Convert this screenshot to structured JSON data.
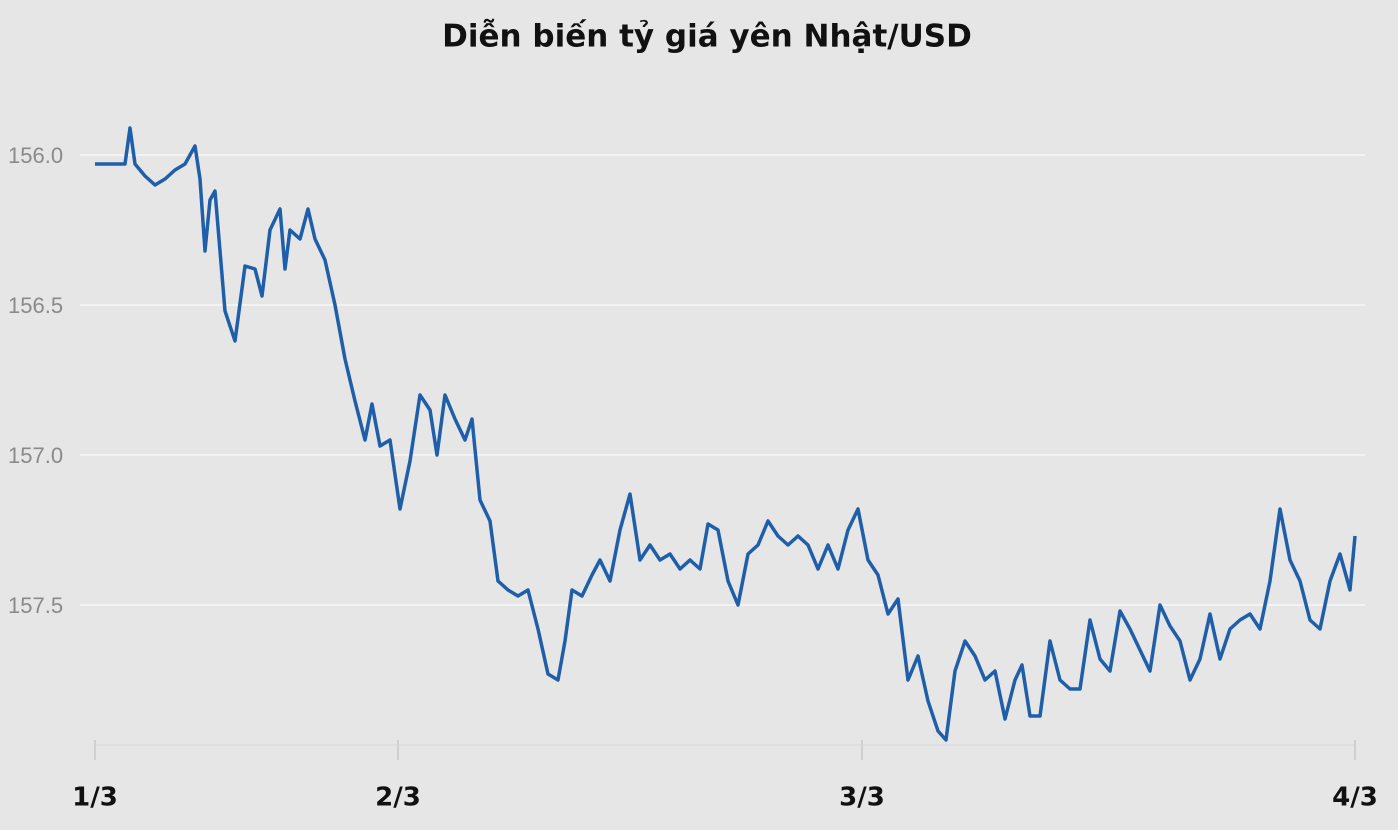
{
  "chart_data": {
    "type": "line",
    "title": "Diễn biến tỷ giá yên Nhật/USD",
    "x": [
      0,
      10,
      20,
      30,
      35,
      40,
      50,
      60,
      70,
      80,
      90,
      100,
      105,
      110,
      115,
      120,
      125,
      130,
      140,
      150,
      160,
      167,
      175,
      185,
      190,
      195,
      205,
      213,
      220,
      230,
      240,
      250,
      260,
      270,
      277,
      285,
      295,
      305,
      315,
      325,
      335,
      342,
      350,
      360,
      370,
      377,
      385,
      395,
      403,
      413,
      423,
      433,
      443,
      453,
      463,
      470,
      477,
      487,
      497,
      505,
      515,
      525,
      535,
      545,
      555,
      565,
      575,
      585,
      595,
      605,
      613,
      623,
      633,
      643,
      653,
      663,
      673,
      683,
      693,
      703,
      713,
      723,
      733,
      743,
      753,
      763,
      773,
      783,
      793,
      803,
      813,
      823,
      833,
      843,
      851,
      860,
      870,
      880,
      890,
      900,
      910,
      920,
      927,
      935,
      945,
      955,
      965,
      975,
      985,
      995,
      1005,
      1015,
      1025,
      1035,
      1045,
      1055,
      1065,
      1075,
      1085,
      1095,
      1105,
      1115,
      1125,
      1135,
      1145,
      1155,
      1165,
      1175,
      1185,
      1195,
      1205,
      1215,
      1225,
      1235,
      1245,
      1255,
      1260
    ],
    "series": [
      {
        "color": "#1f5ea8",
        "values": [
          156.03,
          156.03,
          156.03,
          156.03,
          155.91,
          156.03,
          156.07,
          156.1,
          156.08,
          156.05,
          156.03,
          155.97,
          156.08,
          156.32,
          156.15,
          156.12,
          156.32,
          156.52,
          156.62,
          156.37,
          156.38,
          156.47,
          156.25,
          156.18,
          156.38,
          156.25,
          156.28,
          156.18,
          156.28,
          156.35,
          156.5,
          156.68,
          156.82,
          156.95,
          156.83,
          156.97,
          156.95,
          157.18,
          157.02,
          156.8,
          156.85,
          157.0,
          156.8,
          156.88,
          156.95,
          156.88,
          157.15,
          157.22,
          157.42,
          157.45,
          157.47,
          157.45,
          157.58,
          157.73,
          157.75,
          157.62,
          157.45,
          157.47,
          157.4,
          157.35,
          157.42,
          157.25,
          157.13,
          157.35,
          157.3,
          157.35,
          157.33,
          157.38,
          157.35,
          157.38,
          157.23,
          157.25,
          157.42,
          157.5,
          157.33,
          157.3,
          157.22,
          157.27,
          157.3,
          157.27,
          157.3,
          157.38,
          157.3,
          157.38,
          157.25,
          157.18,
          157.35,
          157.4,
          157.53,
          157.48,
          157.75,
          157.67,
          157.82,
          157.92,
          157.95,
          157.72,
          157.62,
          157.67,
          157.75,
          157.72,
          157.88,
          157.75,
          157.7,
          157.87,
          157.87,
          157.62,
          157.75,
          157.78,
          157.78,
          157.55,
          157.68,
          157.72,
          157.52,
          157.58,
          157.65,
          157.72,
          157.5,
          157.57,
          157.62,
          157.75,
          157.68,
          157.53,
          157.68,
          157.58,
          157.55,
          157.53,
          157.58,
          157.42,
          157.18,
          157.35,
          157.42,
          157.55,
          157.58,
          157.42,
          157.33,
          157.45,
          157.27
        ]
      }
    ],
    "xlim": [
      0,
      1260
    ],
    "xticks": [
      {
        "value": 0,
        "label": "1/3"
      },
      {
        "value": 303,
        "label": "2/3"
      },
      {
        "value": 767,
        "label": "3/3"
      },
      {
        "value": 1260,
        "label": "4/3"
      }
    ],
    "ylim": [
      155.9,
      157.95
    ],
    "y_inverted": true,
    "yticks": [
      {
        "value": 156,
        "label": "156.0"
      },
      156.5,
      {
        "value": 157,
        "label": "157.0"
      },
      157.5
    ],
    "grid": true
  }
}
